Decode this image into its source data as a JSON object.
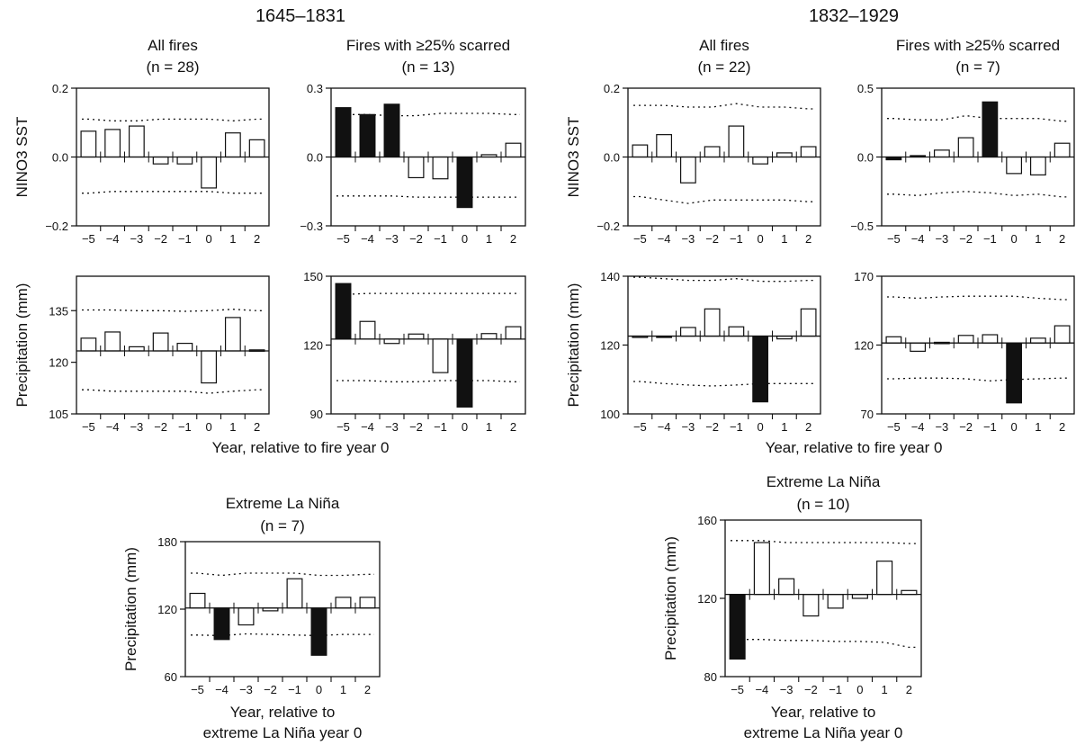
{
  "periods": [
    "1645–1831",
    "1832–1929"
  ],
  "xlabel_fire": "Year, relative to fire year 0",
  "xlabel_nina_lines": [
    "Year, relative to",
    "extreme La Niña year 0"
  ],
  "years": [
    "−5",
    "−4",
    "−3",
    "−2",
    "−1",
    "0",
    "1",
    "2"
  ],
  "chart_data": [
    {
      "id": "p1_all_sst",
      "type": "bar",
      "period": "1645–1831",
      "title": "All fires",
      "n_label": "(n = 28)",
      "ylabel": "NINO3 SST",
      "categories": [
        "−5",
        "−4",
        "−3",
        "−2",
        "−1",
        "0",
        "1",
        "2"
      ],
      "values": [
        0.075,
        0.08,
        0.09,
        -0.02,
        -0.02,
        -0.09,
        0.07,
        0.05
      ],
      "significant": [
        false,
        false,
        false,
        false,
        false,
        false,
        false,
        false
      ],
      "baseline": 0,
      "ylim": [
        -0.2,
        0.2
      ],
      "yticks": [
        "0.2",
        "0.0",
        "−0.2"
      ],
      "ytick_values": [
        0.2,
        0.0,
        -0.2
      ],
      "ci_upper": [
        0.11,
        0.105,
        0.105,
        0.11,
        0.11,
        0.11,
        0.105,
        0.11
      ],
      "ci_lower": [
        -0.105,
        -0.1,
        -0.1,
        -0.1,
        -0.1,
        -0.1,
        -0.105,
        -0.105
      ]
    },
    {
      "id": "p1_scar_sst",
      "type": "bar",
      "period": "1645–1831",
      "title": "Fires with ≥25% scarred",
      "n_label": "(n = 13)",
      "ylabel": "",
      "categories": [
        "−5",
        "−4",
        "−3",
        "−2",
        "−1",
        "0",
        "1",
        "2"
      ],
      "values": [
        0.215,
        0.185,
        0.23,
        -0.09,
        -0.095,
        -0.22,
        0.01,
        0.06
      ],
      "significant": [
        true,
        true,
        true,
        false,
        false,
        true,
        false,
        false
      ],
      "baseline": 0,
      "ylim": [
        -0.3,
        0.3
      ],
      "yticks": [
        "0.3",
        "0.0",
        "−0.3"
      ],
      "ytick_values": [
        0.3,
        0.0,
        -0.3
      ],
      "ci_upper": [
        0.185,
        0.185,
        0.18,
        0.18,
        0.19,
        0.19,
        0.19,
        0.185
      ],
      "ci_lower": [
        -0.17,
        -0.17,
        -0.17,
        -0.175,
        -0.175,
        -0.175,
        -0.175,
        -0.175
      ]
    },
    {
      "id": "p2_all_sst",
      "type": "bar",
      "period": "1832–1929",
      "title": "All fires",
      "n_label": "(n = 22)",
      "ylabel": "NINO3 SST",
      "categories": [
        "−5",
        "−4",
        "−3",
        "−2",
        "−1",
        "0",
        "1",
        "2"
      ],
      "values": [
        0.035,
        0.065,
        -0.075,
        0.03,
        0.09,
        -0.02,
        0.012,
        0.03
      ],
      "significant": [
        false,
        false,
        false,
        false,
        false,
        false,
        false,
        false
      ],
      "baseline": 0,
      "ylim": [
        -0.2,
        0.2
      ],
      "yticks": [
        "0.2",
        "0.0",
        "−0.2"
      ],
      "ytick_values": [
        0.2,
        0.0,
        -0.2
      ],
      "ci_upper": [
        0.15,
        0.15,
        0.145,
        0.145,
        0.155,
        0.145,
        0.145,
        0.14
      ],
      "ci_lower": [
        -0.115,
        -0.125,
        -0.135,
        -0.125,
        -0.125,
        -0.125,
        -0.125,
        -0.13
      ]
    },
    {
      "id": "p2_scar_sst",
      "type": "bar",
      "period": "1832–1929",
      "title": "Fires with ≥25% scarred",
      "n_label": "(n = 7)",
      "ylabel": "",
      "categories": [
        "−5",
        "−4",
        "−3",
        "−2",
        "−1",
        "0",
        "1",
        "2"
      ],
      "values": [
        -0.02,
        0.01,
        0.05,
        0.14,
        0.4,
        -0.12,
        -0.13,
        0.1
      ],
      "significant": [
        true,
        true,
        false,
        false,
        true,
        false,
        false,
        false
      ],
      "baseline": 0,
      "ylim": [
        -0.5,
        0.5
      ],
      "yticks": [
        "0.5",
        "0.0",
        "−0.5"
      ],
      "ytick_values": [
        0.5,
        0.0,
        -0.5
      ],
      "ci_upper": [
        0.28,
        0.27,
        0.27,
        0.3,
        0.28,
        0.28,
        0.28,
        0.26
      ],
      "ci_lower": [
        -0.27,
        -0.28,
        -0.26,
        -0.25,
        -0.26,
        -0.28,
        -0.27,
        -0.29
      ]
    },
    {
      "id": "p1_all_pr",
      "type": "bar",
      "period": "1645–1831",
      "title": "",
      "n_label": "",
      "ylabel": "Precipitation (mm)",
      "categories": [
        "−5",
        "−4",
        "−3",
        "−2",
        "−1",
        "0",
        "1",
        "2"
      ],
      "values": [
        127,
        128.8,
        124.5,
        128.5,
        125.5,
        114,
        133,
        123.6
      ],
      "significant": [
        false,
        false,
        false,
        false,
        false,
        false,
        false,
        false
      ],
      "baseline": 123.3,
      "ylim": [
        105,
        145
      ],
      "yticks": [
        "135",
        "120",
        "105"
      ],
      "ytick_values": [
        135,
        120,
        105
      ],
      "ci_upper": [
        135.2,
        135.2,
        135,
        135,
        134.8,
        135,
        135.4,
        135
      ],
      "ci_lower": [
        112,
        111.6,
        111.6,
        111.6,
        111.6,
        111,
        111.6,
        112
      ]
    },
    {
      "id": "p1_scar_pr",
      "type": "bar",
      "period": "1645–1831",
      "title": "",
      "n_label": "",
      "ylabel": "",
      "categories": [
        "−5",
        "−4",
        "−3",
        "−2",
        "−1",
        "0",
        "1",
        "2"
      ],
      "values": [
        146.8,
        130.3,
        120.7,
        124.8,
        108,
        93,
        125,
        128
      ],
      "significant": [
        true,
        false,
        false,
        false,
        false,
        true,
        false,
        false
      ],
      "baseline": 122.6,
      "ylim": [
        90,
        150
      ],
      "yticks": [
        "150",
        "120",
        "90"
      ],
      "ytick_values": [
        150,
        120,
        90
      ],
      "ci_upper": [
        142,
        142.5,
        142.5,
        142.5,
        142.5,
        142.5,
        142.5,
        142.5
      ],
      "ci_lower": [
        104.5,
        104.5,
        104,
        104,
        104.5,
        104.5,
        104.5,
        104
      ]
    },
    {
      "id": "p2_all_pr",
      "type": "bar",
      "period": "1832–1929",
      "title": "",
      "n_label": "",
      "ylabel": "Precipitation (mm)",
      "categories": [
        "−5",
        "−4",
        "−3",
        "−2",
        "−1",
        "0",
        "1",
        "2"
      ],
      "values": [
        122.6,
        122.3,
        125.1,
        130.5,
        125.3,
        103.5,
        121.8,
        130.5
      ],
      "significant": [
        false,
        true,
        false,
        false,
        false,
        true,
        false,
        false
      ],
      "baseline": 122.6,
      "ylim": [
        100,
        140
      ],
      "yticks": [
        "140",
        "120",
        "100"
      ],
      "ytick_values": [
        140,
        120,
        100
      ],
      "ci_upper": [
        139.7,
        139.3,
        138.8,
        138.8,
        139.3,
        138.5,
        138.5,
        138.8
      ],
      "ci_lower": [
        109.4,
        108.8,
        108.4,
        108.1,
        108.4,
        108.8,
        108.8,
        108.8
      ]
    },
    {
      "id": "p2_scar_pr",
      "type": "bar",
      "period": "1832–1929",
      "title": "",
      "n_label": "",
      "ylabel": "",
      "categories": [
        "−5",
        "−4",
        "−3",
        "−2",
        "−1",
        "0",
        "1",
        "2"
      ],
      "values": [
        126,
        115.5,
        122,
        127,
        127.5,
        78,
        125,
        134
      ],
      "significant": [
        false,
        false,
        true,
        false,
        false,
        true,
        false,
        false
      ],
      "baseline": 121.5,
      "ylim": [
        70,
        170
      ],
      "yticks": [
        "170",
        "120",
        "70"
      ],
      "ytick_values": [
        170,
        120,
        70
      ],
      "ci_upper": [
        155,
        154,
        155,
        155.5,
        155.5,
        155.5,
        154,
        153
      ],
      "ci_lower": [
        95.5,
        96,
        96,
        95.5,
        94,
        95,
        95.5,
        96
      ]
    },
    {
      "id": "p1_nina_pr",
      "type": "bar",
      "period": "1645–1831",
      "title": "Extreme La Niña",
      "n_label": "(n = 7)",
      "ylabel": "Precipitation (mm)",
      "categories": [
        "−5",
        "−4",
        "−3",
        "−2",
        "−1",
        "0",
        "1",
        "2"
      ],
      "values": [
        134,
        93,
        106,
        118.5,
        147,
        79,
        130.5,
        130.5
      ],
      "significant": [
        false,
        true,
        false,
        false,
        false,
        true,
        false,
        false
      ],
      "baseline": 121,
      "ylim": [
        60,
        180
      ],
      "yticks": [
        "180",
        "120",
        "60"
      ],
      "ytick_values": [
        180,
        120,
        60
      ],
      "ci_upper": [
        152,
        150,
        152,
        152,
        152,
        150,
        150,
        151
      ],
      "ci_lower": [
        97,
        96.5,
        98,
        97.5,
        97,
        96.5,
        97.5,
        97.5
      ]
    },
    {
      "id": "p2_nina_pr",
      "type": "bar",
      "period": "1832–1929",
      "title": "Extreme La Niña",
      "n_label": "(n = 10)",
      "ylabel": "Precipitation (mm)",
      "categories": [
        "−5",
        "−4",
        "−3",
        "−2",
        "−1",
        "0",
        "1",
        "2"
      ],
      "values": [
        89,
        148.5,
        130,
        111,
        115,
        120,
        139,
        124
      ],
      "significant": [
        true,
        false,
        false,
        false,
        false,
        false,
        false,
        false
      ],
      "baseline": 122,
      "ylim": [
        80,
        160
      ],
      "yticks": [
        "160",
        "120",
        "80"
      ],
      "ytick_values": [
        160,
        120,
        80
      ],
      "ci_upper": [
        149.5,
        149.5,
        148.5,
        148.5,
        148.5,
        148.5,
        148.5,
        148
      ],
      "ci_lower": [
        99,
        99,
        98.5,
        98.5,
        98,
        98,
        97.5,
        95
      ]
    }
  ]
}
